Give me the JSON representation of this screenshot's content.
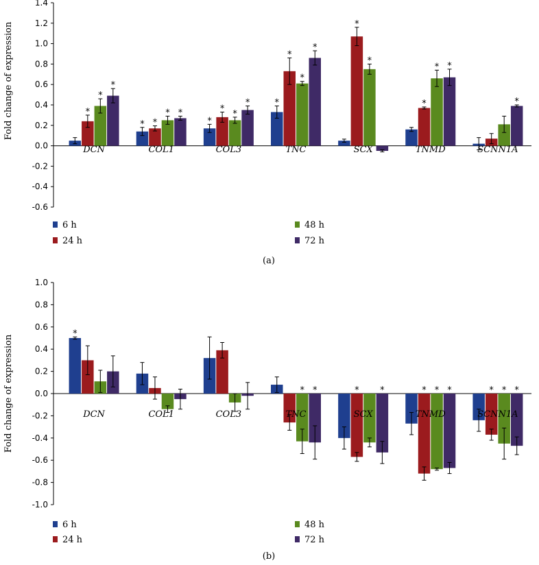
{
  "chart_data": [
    {
      "type": "bar",
      "panel_label": "(a)",
      "ylabel": "Fold change of expression",
      "ylim": [
        -0.6,
        1.4
      ],
      "yticks": [
        -0.6,
        -0.4,
        -0.2,
        0.0,
        0.2,
        0.4,
        0.6,
        0.8,
        1.0,
        1.2,
        1.4
      ],
      "categories": [
        "DCN",
        "COL1",
        "COL3",
        "TNC",
        "SCX",
        "TNMD",
        "SCNN1A"
      ],
      "series": [
        {
          "name": "6 h",
          "color": "#1f3f8f",
          "values": [
            0.05,
            0.14,
            0.17,
            0.33,
            0.05,
            0.16,
            0.02
          ],
          "errors": [
            0.03,
            0.04,
            0.04,
            0.06,
            0.015,
            0.02,
            0.06
          ],
          "sig": [
            false,
            true,
            true,
            true,
            false,
            false,
            false
          ]
        },
        {
          "name": "24 h",
          "color": "#9b1b1e",
          "values": [
            0.24,
            0.17,
            0.28,
            0.73,
            1.07,
            0.37,
            0.07
          ],
          "errors": [
            0.06,
            0.025,
            0.05,
            0.13,
            0.09,
            0.01,
            0.05
          ],
          "sig": [
            true,
            true,
            true,
            true,
            true,
            true,
            false
          ]
        },
        {
          "name": "48 h",
          "color": "#5a8a1f",
          "values": [
            0.39,
            0.25,
            0.25,
            0.61,
            0.75,
            0.66,
            0.21
          ],
          "errors": [
            0.07,
            0.04,
            0.03,
            0.02,
            0.05,
            0.08,
            0.08
          ],
          "sig": [
            true,
            true,
            true,
            true,
            true,
            true,
            false
          ]
        },
        {
          "name": "72 h",
          "color": "#3f2a66",
          "values": [
            0.49,
            0.27,
            0.35,
            0.86,
            -0.05,
            0.67,
            0.39
          ],
          "errors": [
            0.07,
            0.02,
            0.04,
            0.07,
            0.01,
            0.08,
            0.01
          ],
          "sig": [
            true,
            true,
            true,
            true,
            false,
            true,
            true
          ]
        }
      ]
    },
    {
      "type": "bar",
      "panel_label": "(b)",
      "ylabel": "Fold change of expression",
      "ylim": [
        -1.0,
        1.0
      ],
      "yticks": [
        -1.0,
        -0.8,
        -0.6,
        -0.4,
        -0.2,
        0.0,
        0.2,
        0.4,
        0.6,
        0.8,
        1.0
      ],
      "categories": [
        "DCN",
        "COL1",
        "COL3",
        "TNC",
        "SCX",
        "TNMD",
        "SCNN1A"
      ],
      "series": [
        {
          "name": "6 h",
          "color": "#1f3f8f",
          "values": [
            0.5,
            0.18,
            0.32,
            0.08,
            -0.4,
            -0.27,
            -0.24
          ],
          "errors": [
            0.01,
            0.1,
            0.19,
            0.07,
            0.1,
            0.1,
            0.1
          ],
          "sig": [
            true,
            false,
            false,
            false,
            false,
            false,
            false
          ]
        },
        {
          "name": "24 h",
          "color": "#9b1b1e",
          "values": [
            0.3,
            0.05,
            0.39,
            -0.26,
            -0.57,
            -0.72,
            -0.37
          ],
          "errors": [
            0.13,
            0.1,
            0.07,
            0.07,
            0.04,
            0.06,
            0.05
          ],
          "sig": [
            false,
            false,
            false,
            false,
            true,
            true,
            true
          ]
        },
        {
          "name": "48 h",
          "color": "#5a8a1f",
          "values": [
            0.11,
            -0.14,
            -0.08,
            -0.43,
            -0.44,
            -0.68,
            -0.45
          ],
          "errors": [
            0.1,
            0.03,
            0.08,
            0.11,
            0.04,
            0.01,
            0.14
          ],
          "sig": [
            false,
            false,
            false,
            true,
            false,
            true,
            true
          ]
        },
        {
          "name": "72 h",
          "color": "#3f2a66",
          "values": [
            0.2,
            -0.05,
            -0.02,
            -0.44,
            -0.53,
            -0.67,
            -0.47
          ],
          "errors": [
            0.14,
            0.09,
            0.12,
            0.15,
            0.1,
            0.05,
            0.08
          ],
          "sig": [
            false,
            false,
            false,
            true,
            true,
            true,
            true
          ]
        }
      ]
    }
  ]
}
